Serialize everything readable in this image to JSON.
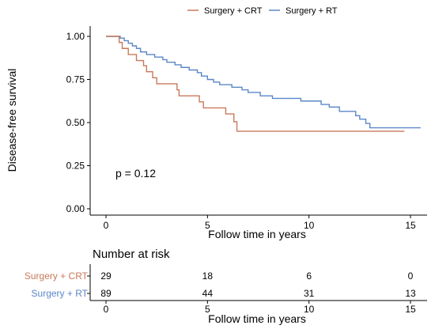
{
  "chart_data": [
    {
      "type": "line",
      "subtype": "kaplan-meier",
      "title": "",
      "xlabel": "Follow time in years",
      "ylabel": "Disease-free survival",
      "xlim": [
        0,
        15.5
      ],
      "ylim": [
        0,
        1
      ],
      "x_ticks": [
        "0",
        "5",
        "10",
        "15"
      ],
      "y_ticks": [
        "0.00",
        "0.25",
        "0.50",
        "0.75",
        "1.00"
      ],
      "annotation": "p = 0.12",
      "legend_position": "top",
      "grid": false,
      "series": [
        {
          "name": "Surgery + CRT",
          "color": "#C8795A",
          "points": [
            [
              0,
              1.0
            ],
            [
              0.65,
              1.0
            ],
            [
              0.65,
              0.965
            ],
            [
              0.8,
              0.965
            ],
            [
              0.8,
              0.93
            ],
            [
              1.1,
              0.93
            ],
            [
              1.1,
              0.895
            ],
            [
              1.5,
              0.895
            ],
            [
              1.5,
              0.86
            ],
            [
              1.85,
              0.86
            ],
            [
              1.85,
              0.83
            ],
            [
              2.0,
              0.83
            ],
            [
              2.0,
              0.795
            ],
            [
              2.3,
              0.795
            ],
            [
              2.3,
              0.76
            ],
            [
              2.5,
              0.76
            ],
            [
              2.5,
              0.725
            ],
            [
              3.5,
              0.725
            ],
            [
              3.5,
              0.69
            ],
            [
              3.6,
              0.69
            ],
            [
              3.6,
              0.655
            ],
            [
              4.6,
              0.655
            ],
            [
              4.6,
              0.62
            ],
            [
              4.8,
              0.62
            ],
            [
              4.8,
              0.585
            ],
            [
              5.9,
              0.585
            ],
            [
              5.9,
              0.55
            ],
            [
              6.3,
              0.55
            ],
            [
              6.3,
              0.505
            ],
            [
              6.45,
              0.505
            ],
            [
              6.45,
              0.45
            ],
            [
              14.7,
              0.45
            ]
          ]
        },
        {
          "name": "Surgery + RT",
          "color": "#5B87C7",
          "points": [
            [
              0,
              1.0
            ],
            [
              0.7,
              1.0
            ],
            [
              0.7,
              0.99
            ],
            [
              0.9,
              0.99
            ],
            [
              0.9,
              0.975
            ],
            [
              1.1,
              0.975
            ],
            [
              1.1,
              0.96
            ],
            [
              1.3,
              0.96
            ],
            [
              1.3,
              0.945
            ],
            [
              1.5,
              0.945
            ],
            [
              1.5,
              0.93
            ],
            [
              1.7,
              0.93
            ],
            [
              1.7,
              0.91
            ],
            [
              2.0,
              0.91
            ],
            [
              2.0,
              0.895
            ],
            [
              2.4,
              0.895
            ],
            [
              2.4,
              0.88
            ],
            [
              2.8,
              0.88
            ],
            [
              2.8,
              0.865
            ],
            [
              3.0,
              0.865
            ],
            [
              3.0,
              0.85
            ],
            [
              3.4,
              0.85
            ],
            [
              3.4,
              0.835
            ],
            [
              3.7,
              0.835
            ],
            [
              3.7,
              0.82
            ],
            [
              4.1,
              0.82
            ],
            [
              4.1,
              0.805
            ],
            [
              4.5,
              0.805
            ],
            [
              4.5,
              0.79
            ],
            [
              4.7,
              0.79
            ],
            [
              4.7,
              0.77
            ],
            [
              5.0,
              0.77
            ],
            [
              5.0,
              0.75
            ],
            [
              5.3,
              0.75
            ],
            [
              5.3,
              0.735
            ],
            [
              5.6,
              0.735
            ],
            [
              5.6,
              0.72
            ],
            [
              6.2,
              0.72
            ],
            [
              6.2,
              0.705
            ],
            [
              6.7,
              0.705
            ],
            [
              6.7,
              0.69
            ],
            [
              7.0,
              0.69
            ],
            [
              7.0,
              0.675
            ],
            [
              7.6,
              0.675
            ],
            [
              7.6,
              0.655
            ],
            [
              8.2,
              0.655
            ],
            [
              8.2,
              0.64
            ],
            [
              9.6,
              0.64
            ],
            [
              9.6,
              0.625
            ],
            [
              10.6,
              0.625
            ],
            [
              10.6,
              0.605
            ],
            [
              11.0,
              0.605
            ],
            [
              11.0,
              0.59
            ],
            [
              11.5,
              0.59
            ],
            [
              11.5,
              0.565
            ],
            [
              12.3,
              0.565
            ],
            [
              12.3,
              0.54
            ],
            [
              12.5,
              0.54
            ],
            [
              12.5,
              0.52
            ],
            [
              12.8,
              0.52
            ],
            [
              12.8,
              0.495
            ],
            [
              13.0,
              0.495
            ],
            [
              13.0,
              0.47
            ],
            [
              15.5,
              0.47
            ]
          ]
        }
      ]
    },
    {
      "type": "table",
      "title": "Number at risk",
      "xlabel": "Follow time in years",
      "x_ticks": [
        "0",
        "5",
        "10",
        "15"
      ],
      "x_values": [
        0,
        5,
        10,
        15
      ],
      "rows": [
        {
          "name": "Surgery + CRT",
          "color": "#C8795A",
          "values": [
            "29",
            "18",
            "6",
            "0"
          ]
        },
        {
          "name": "Surgery + RT",
          "color": "#5B87C7",
          "values": [
            "89",
            "44",
            "31",
            "13"
          ]
        }
      ]
    }
  ]
}
